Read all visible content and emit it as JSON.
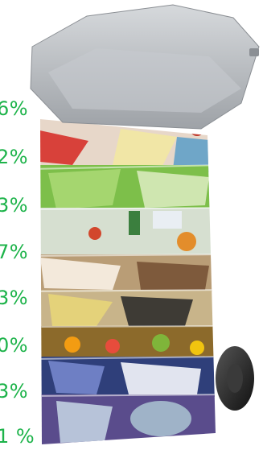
{
  "labels": {
    "items": [
      {
        "text": "6%"
      },
      {
        "text": "2%"
      },
      {
        "text": "3%"
      },
      {
        "text": "7%"
      },
      {
        "text": "3%"
      },
      {
        "text": "0%"
      },
      {
        "text": "3%"
      },
      {
        "text": "1 %"
      }
    ]
  },
  "colors": {
    "label_green": "#1db34a",
    "lid_grey": "#b9bcc0",
    "wheel_dark": "#2b2b2b"
  },
  "image": {
    "subject": "wheelie-bin-waste-composition-photo"
  }
}
